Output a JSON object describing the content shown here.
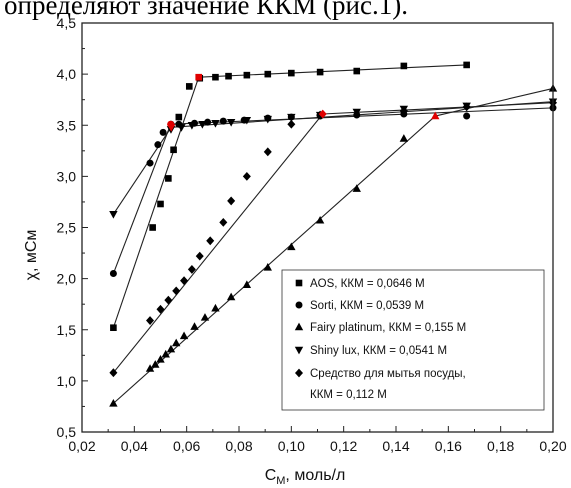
{
  "page": {
    "top_text": "определяют значение ККМ (рис.1)."
  },
  "chart_data": {
    "type": "scatter",
    "xlabel": "C",
    "xlabel_sub": "М",
    "xlabel_suffix": ", моль/л",
    "ylabel": "χ, мСм",
    "xlim": [
      0.02,
      0.2
    ],
    "ylim": [
      0.5,
      4.5
    ],
    "x_ticks": [
      0.02,
      0.04,
      0.06,
      0.08,
      0.1,
      0.12,
      0.14,
      0.16,
      0.18,
      0.2
    ],
    "x_tick_labels": [
      "0,02",
      "0,04",
      "0,06",
      "0,08",
      "0,10",
      "0,12",
      "0,14",
      "0,16",
      "0,18",
      "0,20"
    ],
    "y_ticks": [
      0.5,
      1.0,
      1.5,
      2.0,
      2.5,
      3.0,
      3.5,
      4.0,
      4.5
    ],
    "y_tick_labels": [
      "0,5",
      "1,0",
      "1,5",
      "2,0",
      "2,5",
      "3,0",
      "3,5",
      "4,0",
      "4,5"
    ],
    "grid": false,
    "legend_position": "bottom-right",
    "highlight_color": "#e00000",
    "series": [
      {
        "name": "AOS, ККМ = 0,0646 М",
        "marker": "square",
        "x": [
          0.032,
          0.047,
          0.05,
          0.053,
          0.055,
          0.057,
          0.061,
          0.065,
          0.071,
          0.076,
          0.083,
          0.091,
          0.1,
          0.111,
          0.125,
          0.143,
          0.167
        ],
        "y": [
          1.52,
          2.5,
          2.73,
          2.98,
          3.26,
          3.58,
          3.88,
          3.96,
          3.97,
          3.98,
          3.99,
          4.0,
          4.01,
          4.02,
          4.03,
          4.08,
          4.09
        ],
        "fit_lines": [
          {
            "x": [
              0.032,
              0.0646
            ],
            "y": [
              1.52,
              3.97
            ]
          },
          {
            "x": [
              0.0646,
              0.167
            ],
            "y": [
              3.97,
              4.09
            ]
          }
        ],
        "cmc_point": {
          "x": 0.0646,
          "y": 3.97
        }
      },
      {
        "name": "Sorti, ККМ = 0,0539 М",
        "marker": "circle",
        "x": [
          0.032,
          0.046,
          0.049,
          0.051,
          0.054,
          0.057,
          0.063,
          0.068,
          0.074,
          0.082,
          0.091,
          0.1,
          0.111,
          0.125,
          0.143,
          0.167,
          0.2
        ],
        "y": [
          2.05,
          3.13,
          3.31,
          3.43,
          3.51,
          3.51,
          3.52,
          3.53,
          3.54,
          3.55,
          3.57,
          3.58,
          3.59,
          3.6,
          3.61,
          3.59,
          3.67
        ],
        "fit_lines": [
          {
            "x": [
              0.032,
              0.0539
            ],
            "y": [
              2.05,
              3.51
            ]
          },
          {
            "x": [
              0.0539,
              0.2
            ],
            "y": [
              3.51,
              3.67
            ]
          }
        ],
        "cmc_point": {
          "x": 0.0539,
          "y": 3.51
        }
      },
      {
        "name": "Fairy platinum, ККМ = 0,155 М",
        "marker": "triangle-up",
        "x": [
          0.032,
          0.046,
          0.048,
          0.05,
          0.052,
          0.054,
          0.056,
          0.059,
          0.063,
          0.067,
          0.071,
          0.077,
          0.083,
          0.091,
          0.1,
          0.111,
          0.125,
          0.143,
          0.2
        ],
        "y": [
          0.78,
          1.12,
          1.16,
          1.21,
          1.26,
          1.31,
          1.37,
          1.44,
          1.53,
          1.62,
          1.71,
          1.82,
          1.94,
          2.11,
          2.31,
          2.57,
          2.88,
          3.37,
          3.86
        ],
        "fit_lines": [
          {
            "x": [
              0.032,
              0.155
            ],
            "y": [
              0.78,
              3.59
            ]
          },
          {
            "x": [
              0.155,
              0.2
            ],
            "y": [
              3.59,
              3.86
            ]
          }
        ],
        "cmc_point": {
          "x": 0.155,
          "y": 3.59
        }
      },
      {
        "name": "Shiny lux, ККМ = 0,0541 М",
        "marker": "triangle-down",
        "x": [
          0.032,
          0.054,
          0.058,
          0.062,
          0.066,
          0.071,
          0.077,
          0.083,
          0.091,
          0.1,
          0.111,
          0.125,
          0.143,
          0.167,
          0.2
        ],
        "y": [
          2.63,
          3.46,
          3.48,
          3.5,
          3.51,
          3.52,
          3.53,
          3.55,
          3.56,
          3.58,
          3.6,
          3.63,
          3.66,
          3.69,
          3.73
        ],
        "fit_lines": [
          {
            "x": [
              0.032,
              0.0541
            ],
            "y": [
              2.63,
              3.48
            ]
          },
          {
            "x": [
              0.0541,
              0.2
            ],
            "y": [
              3.48,
              3.73
            ]
          }
        ],
        "cmc_point": {
          "x": 0.0541,
          "y": 3.48
        }
      },
      {
        "name": "Средство для мытья посуды,",
        "name_line2": "ККМ = 0,112 М",
        "marker": "diamond",
        "x": [
          0.032,
          0.046,
          0.05,
          0.053,
          0.056,
          0.059,
          0.062,
          0.065,
          0.069,
          0.074,
          0.077,
          0.083,
          0.091,
          0.1,
          0.111,
          0.143,
          0.167,
          0.2
        ],
        "y": [
          1.08,
          1.59,
          1.7,
          1.79,
          1.88,
          1.98,
          2.09,
          2.22,
          2.37,
          2.55,
          2.76,
          3.0,
          3.24,
          3.51,
          3.6,
          3.64,
          3.68,
          3.72
        ],
        "fit_lines": [
          {
            "x": [
              0.032,
              0.112
            ],
            "y": [
              1.08,
              3.61
            ]
          },
          {
            "x": [
              0.112,
              0.2
            ],
            "y": [
              3.61,
              3.72
            ]
          }
        ],
        "cmc_point": {
          "x": 0.112,
          "y": 3.61
        }
      }
    ]
  }
}
